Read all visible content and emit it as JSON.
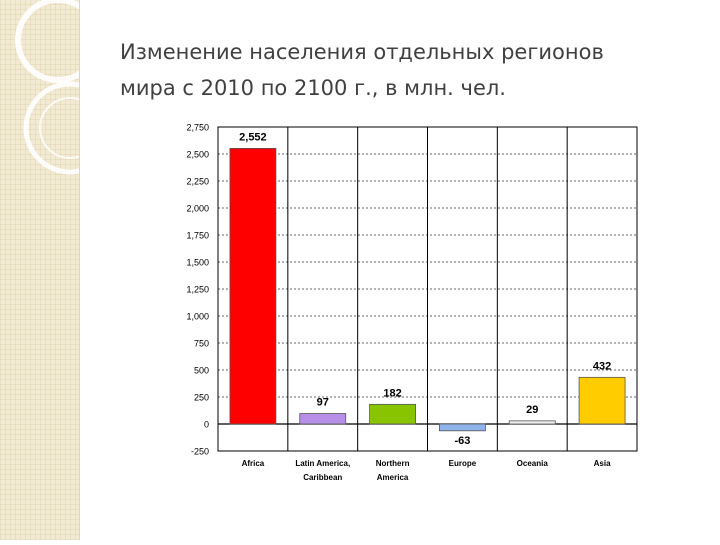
{
  "slide": {
    "title_line1": "Изменение населения отдельных регионов",
    "title_line2": "мира с 2010 по 2100 г., в млн. чел."
  },
  "chart_data": {
    "type": "bar",
    "categories": [
      [
        "Africa"
      ],
      [
        "Latin America,",
        "Caribbean"
      ],
      [
        "Northern",
        "America"
      ],
      [
        "Europe"
      ],
      [
        "Oceania"
      ],
      [
        "Asia"
      ]
    ],
    "values": [
      2552,
      97,
      182,
      -63,
      29,
      432
    ],
    "data_labels": [
      "2,552",
      "97",
      "182",
      "-63",
      "29",
      "432"
    ],
    "colors": [
      "#ff0000",
      "#b78fe8",
      "#88c400",
      "#8fb4ec",
      "#f0f0f0",
      "#ffcc00"
    ],
    "yticks": [
      -250,
      0,
      250,
      500,
      750,
      1000,
      1250,
      1500,
      1750,
      2000,
      2250,
      2500,
      2750
    ],
    "ytick_labels": [
      "-250",
      "0",
      "250",
      "500",
      "750",
      "1,000",
      "1,250",
      "1,500",
      "1,750",
      "2,000",
      "2,250",
      "2,500",
      "2,750"
    ],
    "ylim": [
      -250,
      2750
    ],
    "grid": true,
    "legend": "none",
    "title": "",
    "xlabel": "",
    "ylabel": ""
  }
}
